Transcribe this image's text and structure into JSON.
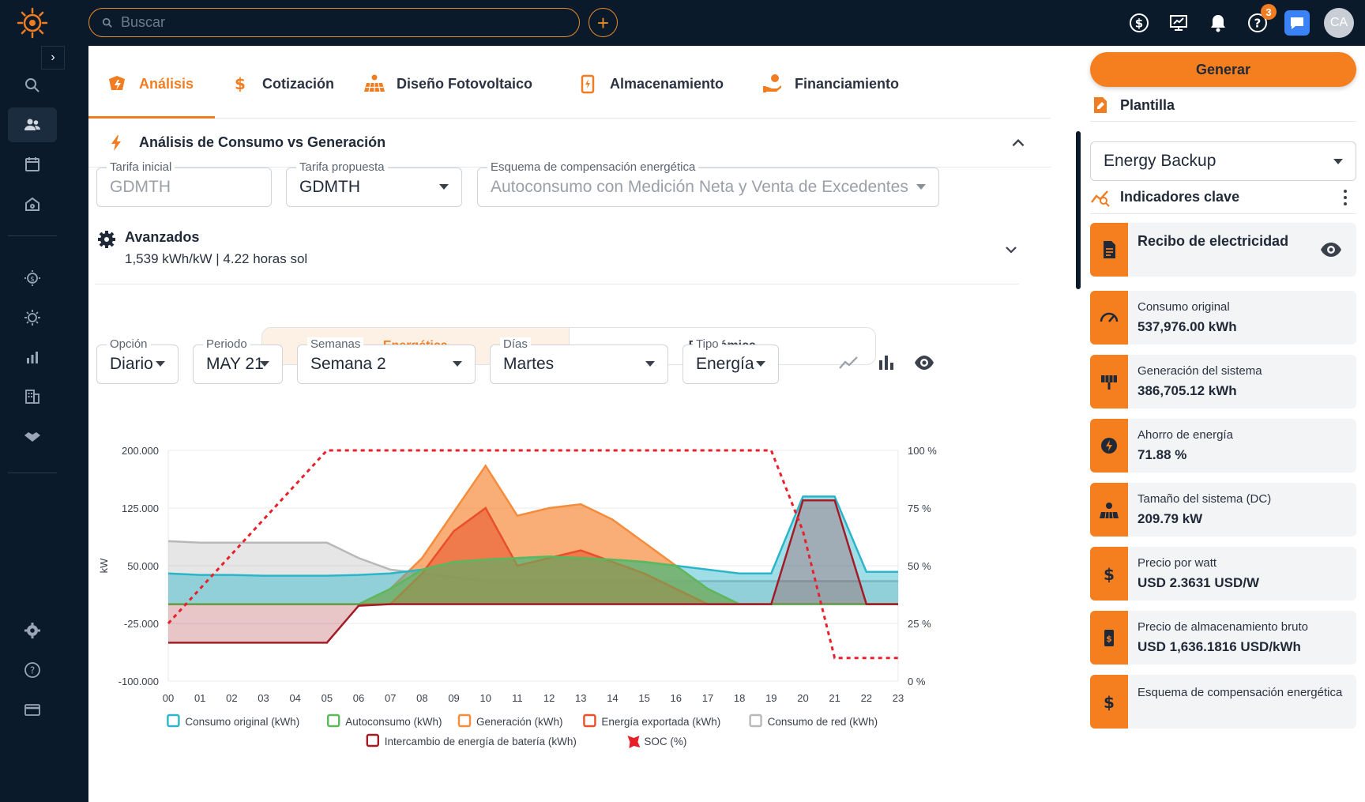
{
  "search": {
    "placeholder": "Buscar"
  },
  "header": {
    "help_badge": "3",
    "avatar_initials": "CA"
  },
  "tabs": [
    {
      "label": "Análisis",
      "icon": "analysis-icon",
      "active": true
    },
    {
      "label": "Cotización",
      "icon": "dollar-icon"
    },
    {
      "label": "Diseño Fotovoltaico",
      "icon": "solar-panel-icon"
    },
    {
      "label": "Almacenamiento",
      "icon": "battery-icon"
    },
    {
      "label": "Financiamiento",
      "icon": "financing-icon"
    }
  ],
  "section": {
    "title": "Análisis de Consumo vs Generación"
  },
  "fields": {
    "tarifa_inicial": {
      "label": "Tarifa inicial",
      "value": "GDMTH"
    },
    "tarifa_propuesta": {
      "label": "Tarifa propuesta",
      "value": "GDMTH"
    },
    "esquema": {
      "label": "Esquema de compensación energética",
      "value": "Autoconsumo con Medición Neta y Venta de Excedentes"
    }
  },
  "avanzados": {
    "title": "Avanzados",
    "subtitle": "1,539 kWh/kW | 4.22 horas sol"
  },
  "view_toggle": {
    "energetica": "Energética",
    "economica": "Económica"
  },
  "filters": {
    "opcion": {
      "label": "Opción",
      "value": "Diario"
    },
    "periodo": {
      "label": "Periodo",
      "value": "MAY 21"
    },
    "semanas": {
      "label": "Semanas",
      "value": "Semana 2"
    },
    "dias": {
      "label": "Días",
      "value": "Martes"
    },
    "tipo": {
      "label": "Tipo",
      "value": "Energía"
    }
  },
  "right": {
    "generate_label": "Generar",
    "plantilla_title": "Plantilla",
    "plantilla_value": "Energy Backup",
    "indicadores_title": "Indicadores clave",
    "recibo_title": "Recibo de electricidad",
    "cards": [
      {
        "label": "Consumo original",
        "value": "537,976.00 kWh",
        "icon": "speedometer-icon"
      },
      {
        "label": "Generación del sistema",
        "value": "386,705.12 kWh",
        "icon": "solar-tower-icon"
      },
      {
        "label": "Ahorro de energía",
        "value": "71.88 %",
        "icon": "energy-savings-icon"
      },
      {
        "label": "Tamaño del sistema (DC)",
        "value": "209.79 kW",
        "icon": "solar-system-icon"
      },
      {
        "label": "Precio por watt",
        "value": "USD 2.3631 USD/W",
        "icon": "dollar-icon"
      },
      {
        "label": "Precio de almacenamiento bruto",
        "value": "USD 1,636.1816 USD/kWh",
        "icon": "battery-dollar-icon"
      },
      {
        "label": "Esquema de compensación energética",
        "value": "",
        "icon": "dollar-icon"
      }
    ]
  },
  "chart_data": {
    "type": "area",
    "ylabel": "kW",
    "y_ticks": [
      "200.000",
      "125.000",
      "50.000",
      "-25.000",
      "-100.000"
    ],
    "y2_ticks": [
      "100 %",
      "75 %",
      "50 %",
      "25 %",
      "0 %"
    ],
    "ylim": [
      -100,
      200
    ],
    "y2lim": [
      0,
      100
    ],
    "x": [
      "00",
      "01",
      "02",
      "03",
      "04",
      "05",
      "06",
      "07",
      "08",
      "09",
      "10",
      "11",
      "12",
      "13",
      "14",
      "15",
      "16",
      "17",
      "18",
      "19",
      "20",
      "21",
      "22",
      "23"
    ],
    "series": [
      {
        "name": "Consumo de red (kWh)",
        "color": "#b8b8b8",
        "values": [
          82,
          80,
          80,
          80,
          80,
          80,
          60,
          45,
          40,
          35,
          30,
          30,
          30,
          30,
          30,
          30,
          30,
          30,
          30,
          30,
          30,
          30,
          30,
          30
        ]
      },
      {
        "name": "Generación (kWh)",
        "color": "#f58c3c",
        "values": [
          0,
          0,
          0,
          0,
          0,
          0,
          0,
          20,
          60,
          120,
          180,
          115,
          125,
          130,
          110,
          80,
          50,
          20,
          0,
          0,
          0,
          0,
          0,
          0
        ]
      },
      {
        "name": "Consumo original (kWh)",
        "color": "#2bb5c9",
        "values": [
          40,
          38,
          38,
          37,
          37,
          37,
          38,
          40,
          45,
          55,
          58,
          60,
          62,
          60,
          58,
          55,
          50,
          45,
          40,
          40,
          140,
          140,
          42,
          42
        ]
      },
      {
        "name": "Energía exportada (kWh)",
        "color": "#e8502a",
        "values": [
          0,
          0,
          0,
          0,
          0,
          0,
          0,
          0,
          40,
          95,
          125,
          50,
          60,
          70,
          55,
          40,
          20,
          0,
          0,
          0,
          0,
          0,
          0,
          0
        ]
      },
      {
        "name": "Autoconsumo (kWh)",
        "color": "#5cb85c",
        "values": [
          0,
          0,
          0,
          0,
          0,
          0,
          0,
          20,
          45,
          55,
          58,
          60,
          62,
          60,
          58,
          55,
          50,
          20,
          0,
          0,
          0,
          0,
          0,
          0
        ]
      },
      {
        "name": "Intercambio de energía de batería (kWh)",
        "color": "#a31c25",
        "values": [
          -50,
          -50,
          -50,
          -50,
          -50,
          -50,
          -2,
          0,
          0,
          0,
          0,
          0,
          0,
          0,
          0,
          0,
          0,
          0,
          0,
          0,
          135,
          135,
          0,
          0
        ]
      },
      {
        "name": "SOC (%)",
        "color": "#e8202a",
        "axis": "right",
        "values": [
          25,
          40,
          55,
          70,
          85,
          100,
          100,
          100,
          100,
          100,
          100,
          100,
          100,
          100,
          100,
          100,
          100,
          100,
          100,
          100,
          65,
          10,
          10,
          10
        ]
      }
    ],
    "legend_row1": [
      "Consumo original (kWh)",
      "Autoconsumo (kWh)",
      "Generación (kWh)",
      "Energía exportada (kWh)",
      "Consumo de red (kWh)"
    ],
    "legend_row2": [
      "Intercambio de energía de batería (kWh)",
      "SOC (%)"
    ]
  }
}
